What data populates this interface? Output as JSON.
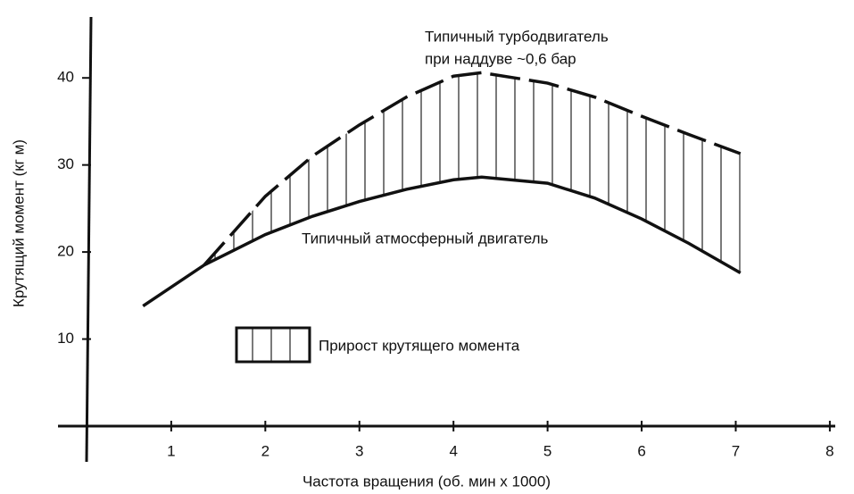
{
  "chart_data": {
    "type": "line",
    "xlabel": "Частота вращения (об. мин x 1000)",
    "ylabel": "Крутящий момент (кг м)",
    "x": [
      0.7,
      1.35,
      2,
      2.5,
      3,
      3.5,
      4,
      4.3,
      5,
      5.5,
      6,
      6.5,
      7.05
    ],
    "series": [
      {
        "name": "Типичный атмосферный двигатель",
        "color": "#111111",
        "dash": false,
        "values": [
          13.8,
          18.5,
          22.0,
          24.1,
          25.8,
          27.2,
          28.3,
          28.6,
          27.9,
          26.2,
          23.8,
          21.0,
          17.6
        ]
      },
      {
        "name": "Типичный турбодвигатель при наддуве ~0,6 бар",
        "name_lines": [
          "Типичный турбодвигатель",
          "при наддуве ~0,6 бар"
        ],
        "color": "#111111",
        "dash": true,
        "values": [
          null,
          18.5,
          26.4,
          31.0,
          34.6,
          37.8,
          40.2,
          40.6,
          39.4,
          37.8,
          35.6,
          33.5,
          31.3
        ]
      }
    ],
    "area_label": "Прирост крутящего момента",
    "xlim": [
      0.1,
      8.2
    ],
    "ylim": [
      0,
      47
    ],
    "xticks": [
      1,
      2,
      3,
      4,
      5,
      6,
      7,
      8
    ],
    "yticks": [
      10,
      20,
      30,
      40
    ]
  }
}
